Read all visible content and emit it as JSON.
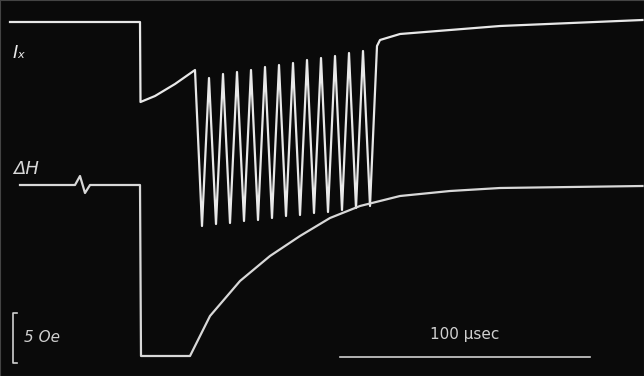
{
  "chart_data": {
    "type": "line",
    "x_scale_bar": {
      "value": 100,
      "label": "100 µsec"
    },
    "y_scale_bar": {
      "value": 5,
      "label": "5 Oe"
    },
    "xlim": [
      0,
      257.6
    ],
    "ylim": [
      0,
      37.6
    ],
    "grid": false,
    "tick_labels": false,
    "series": [
      {
        "name": "Iₓ",
        "color": "#e8e8e8",
        "line_style": "solid",
        "x": [
          4,
          56,
          56.2,
          62,
          70,
          78,
          80.8,
          83.6,
          86.4,
          89.2,
          92.0,
          94.8,
          97.6,
          100.4,
          103.2,
          106.0,
          108.8,
          111.6,
          114.4,
          117.2,
          120.0,
          122.8,
          125.6,
          128.4,
          131.2,
          134.0,
          136.8,
          139.6,
          142.4,
          145.2,
          148.0,
          150.8,
          152,
          160,
          200,
          257
        ],
        "values": [
          35.4,
          35.4,
          27.4,
          28.0,
          29.2,
          30.6,
          15.0,
          29.8,
          15.2,
          30.2,
          15.3,
          30.4,
          15.5,
          30.6,
          15.6,
          30.9,
          15.8,
          31.1,
          16.0,
          31.3,
          16.1,
          31.6,
          16.3,
          31.8,
          16.4,
          32.0,
          16.6,
          32.3,
          16.8,
          32.5,
          17.0,
          33.0,
          33.6,
          34.2,
          35.0,
          35.6
        ]
      },
      {
        "name": "ΔH",
        "color": "#d8d8d8",
        "line_style": "solid",
        "x": [
          8,
          30,
          32,
          34,
          36,
          56,
          56.4,
          76,
          84,
          96,
          108,
          120,
          132,
          144,
          160,
          180,
          200,
          257
        ],
        "values": [
          19.1,
          19.1,
          20.0,
          18.3,
          19.1,
          19.1,
          2.0,
          2.0,
          6.0,
          9.5,
          12.0,
          14.0,
          15.8,
          17.0,
          18.0,
          18.5,
          18.8,
          19.0
        ]
      }
    ]
  }
}
